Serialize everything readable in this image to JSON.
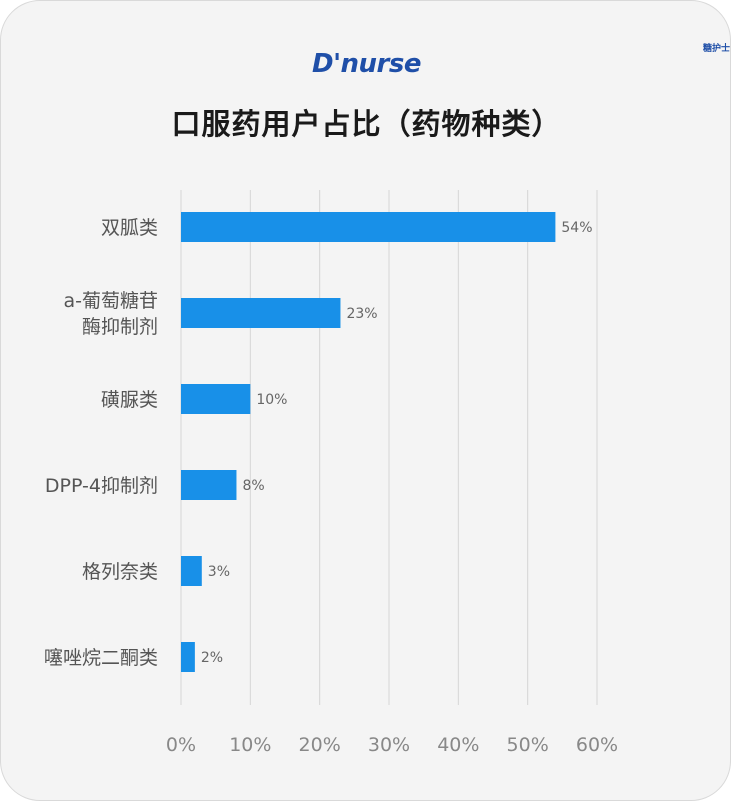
{
  "logo": {
    "main": "D'nurse",
    "small": "糖护士"
  },
  "chart_data": {
    "type": "bar",
    "orientation": "horizontal",
    "title": "口服药用户占比（药物种类）",
    "categories": [
      [
        "双胍类"
      ],
      [
        "a-葡萄糖苷",
        "酶抑制剂"
      ],
      [
        "磺脲类"
      ],
      [
        "DPP-4抑制剂"
      ],
      [
        "格列奈类"
      ],
      [
        "噻唑烷二酮类"
      ]
    ],
    "values": [
      54,
      23,
      10,
      8,
      3,
      2
    ],
    "value_labels": [
      "54%",
      "23%",
      "10%",
      "8%",
      "3%",
      "2%"
    ],
    "x_ticks": [
      "0%",
      "10%",
      "20%",
      "30%",
      "40%",
      "50%",
      "60%"
    ],
    "xlim": [
      0,
      60
    ],
    "grid": true,
    "bar_color": "#1890e8",
    "grid_color": "#d6d6d6"
  }
}
